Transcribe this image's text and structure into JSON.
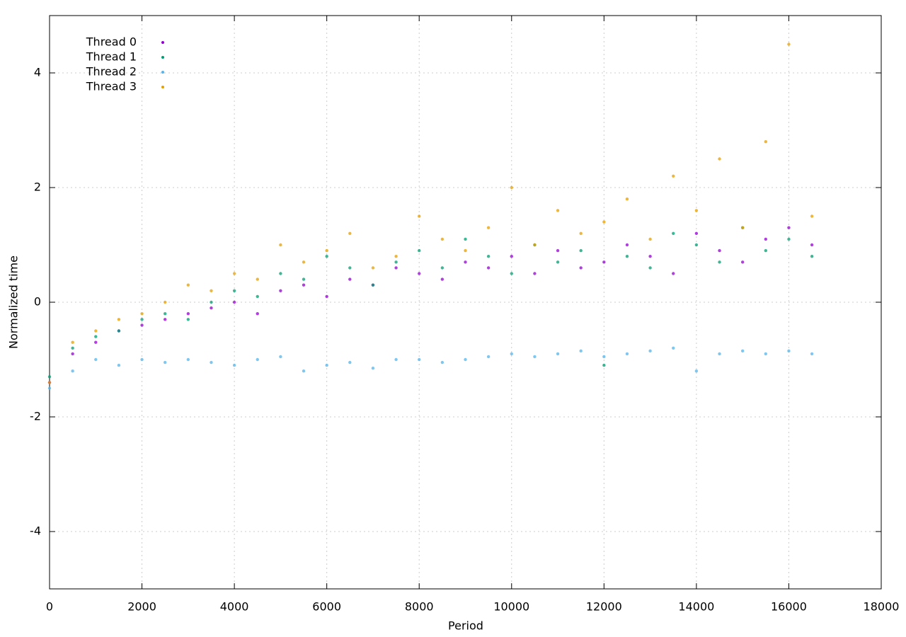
{
  "chart_data": {
    "type": "scatter",
    "xlabel": "Period",
    "ylabel": "Normalized time",
    "x": [
      0,
      500,
      1000,
      1500,
      2000,
      2500,
      3000,
      3500,
      4000,
      4500,
      5000,
      5500,
      6000,
      6500,
      7000,
      7500,
      8000,
      8500,
      9000,
      9500,
      10000,
      10500,
      11000,
      11500,
      12000,
      12500,
      13000,
      13500,
      14000,
      14500,
      15000,
      15500,
      16000,
      16500
    ],
    "series": [
      {
        "name": "Thread 0",
        "color": "#9400d3",
        "values": [
          -1.4,
          -0.9,
          -0.7,
          -0.5,
          -0.4,
          -0.3,
          -0.2,
          -0.1,
          0.0,
          -0.2,
          0.2,
          0.3,
          0.1,
          0.4,
          0.3,
          0.6,
          0.5,
          0.4,
          0.7,
          0.6,
          0.8,
          0.5,
          0.9,
          0.6,
          0.7,
          1.0,
          0.8,
          0.5,
          1.2,
          0.9,
          0.7,
          1.1,
          1.3,
          1.0
        ]
      },
      {
        "name": "Thread 1",
        "color": "#009e73",
        "values": [
          -1.3,
          -0.8,
          -0.6,
          -0.5,
          -0.3,
          -0.2,
          -0.3,
          0.0,
          0.2,
          0.1,
          0.5,
          0.4,
          0.8,
          0.6,
          0.3,
          0.7,
          0.9,
          0.6,
          1.1,
          0.8,
          0.5,
          1.0,
          0.7,
          0.9,
          -1.1,
          0.8,
          0.6,
          1.2,
          1.0,
          0.7,
          1.3,
          0.9,
          1.1,
          0.8
        ]
      },
      {
        "name": "Thread 2",
        "color": "#56b4e9",
        "values": [
          -1.5,
          -1.2,
          -1.0,
          -1.1,
          -1.0,
          -1.05,
          -1.0,
          -1.05,
          -1.1,
          -1.0,
          -0.95,
          -1.2,
          -1.1,
          -1.05,
          -1.15,
          -1.0,
          -1.0,
          -1.05,
          -1.0,
          -0.95,
          -0.9,
          -0.95,
          -0.9,
          -0.85,
          -0.95,
          -0.9,
          -0.85,
          -0.8,
          -1.2,
          -0.9,
          -0.85,
          -0.9,
          -0.85,
          -0.9
        ]
      },
      {
        "name": "Thread 3",
        "color": "#e69f00",
        "values": [
          -1.4,
          -0.7,
          -0.5,
          -0.3,
          -0.2,
          0.0,
          0.3,
          0.2,
          0.5,
          0.4,
          1.0,
          0.7,
          0.9,
          1.2,
          0.6,
          0.8,
          1.5,
          1.1,
          0.9,
          1.3,
          2.0,
          1.0,
          1.6,
          1.2,
          1.4,
          1.8,
          1.1,
          2.2,
          1.6,
          2.5,
          1.3,
          2.8,
          4.5,
          1.5
        ]
      }
    ],
    "xlim": [
      0,
      18000
    ],
    "xticks": [
      0,
      2000,
      4000,
      6000,
      8000,
      10000,
      12000,
      14000,
      16000,
      18000
    ],
    "ylim": [
      -5,
      5
    ],
    "yticks": [
      -4,
      -2,
      0,
      2,
      4
    ],
    "grid": true,
    "legend": "top-left"
  }
}
